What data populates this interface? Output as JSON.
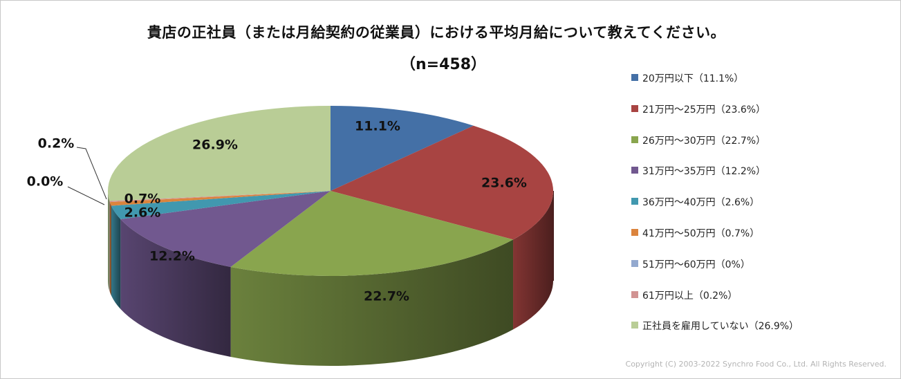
{
  "title": "貴店の正社員（または月給契約の従業員）における平均月給について教えてください。",
  "subtitle": "（n=458）",
  "copyright": "Copyright (C) 2003-2022  Synchro Food Co., Ltd. All Rights Reserved.",
  "chart_data": {
    "type": "pie",
    "title": "貴店の正社員（または月給契約の従業員）における平均月給について教えてください。",
    "subtitle": "（n=458）",
    "legend_position": "right",
    "start_angle_deg": 0,
    "direction": "clockwise",
    "three_d": true,
    "slices": [
      {
        "category": "20万円以下",
        "value": 11.1,
        "label": "11.1%",
        "legend": "20万円以下（11.1%）",
        "color": "#4470a6"
      },
      {
        "category": "21万円～25万円",
        "value": 23.6,
        "label": "23.6%",
        "legend": "21万円～25万円（23.6%）",
        "color": "#a84442"
      },
      {
        "category": "26万円～30万円",
        "value": 22.7,
        "label": "22.7%",
        "legend": "26万円～30万円（22.7%）",
        "color": "#89a54e"
      },
      {
        "category": "31万円～35万円",
        "value": 12.2,
        "label": "12.2%",
        "legend": "31万円～35万円（12.2%）",
        "color": "#71588f"
      },
      {
        "category": "36万円～40万円",
        "value": 2.6,
        "label": "2.6%",
        "legend": "36万円～40万円（2.6%）",
        "color": "#4198af"
      },
      {
        "category": "41万円～50万円",
        "value": 0.7,
        "label": "0.7%",
        "legend": "41万円～50万円（0.7%）",
        "color": "#db843d"
      },
      {
        "category": "51万円～60万円",
        "value": 0.0,
        "label": "0.0%",
        "legend": "51万円～60万円（0%）",
        "color": "#93a9cf"
      },
      {
        "category": "61万円以上",
        "value": 0.2,
        "label": "0.2%",
        "legend": "61万円以上（0.2%）",
        "color": "#d19392"
      },
      {
        "category": "正社員を雇用していない",
        "value": 26.9,
        "label": "26.9%",
        "legend": "正社員を雇用していない（26.9%）",
        "color": "#b9cd96"
      }
    ]
  }
}
